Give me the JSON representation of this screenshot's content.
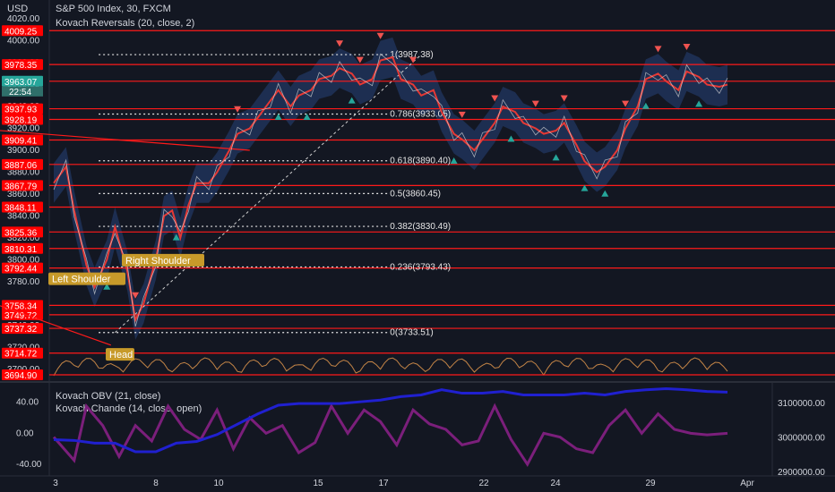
{
  "header": {
    "currency": "USD",
    "symbol_line": "S&P 500 Index, 30, FXCM",
    "indicator_line": "Kovach Reversals (20, close, 2)",
    "sub_line1": "Kovach OBV (21, close)",
    "sub_line2": "Kovach Chande (14, close, open)",
    "price_tag": "3963.07",
    "countdown": "22:54"
  },
  "colors": {
    "background": "#131722",
    "level_line": "#ff1a1a",
    "level_badge": "#ff0000",
    "price_line": "#e53935",
    "band": "#2a4c8c",
    "up_marker": "#26a69a",
    "down_marker": "#ef5350",
    "obv": "#2020d0",
    "chande": "#7b1f7b",
    "pattern_label": "#c79a2a"
  },
  "chart_data": {
    "type": "line",
    "price_axis_ticks": [
      "4020.00",
      "4000.00",
      "3980.00",
      "3960.00",
      "3940.00",
      "3920.00",
      "3900.00",
      "3880.00",
      "3860.00",
      "3840.00",
      "3820.00",
      "3800.00",
      "3780.00",
      "3760.00",
      "3740.00",
      "3720.00",
      "3700.00"
    ],
    "price_ylim": [
      3690,
      4025
    ],
    "horizontal_levels": [
      4009.25,
      3978.35,
      3963.07,
      3937.93,
      3928.19,
      3909.41,
      3887.06,
      3867.79,
      3848.11,
      3825.36,
      3810.31,
      3792.44,
      3758.34,
      3749.72,
      3737.32,
      3714.72,
      3694.9
    ],
    "fib_levels": [
      {
        "label": "1(3987.38)",
        "price": 3987.38
      },
      {
        "label": "0.786(3933.05)",
        "price": 3933.05
      },
      {
        "label": "0.618(3890.40)",
        "price": 3890.4
      },
      {
        "label": "0.5(3860.45)",
        "price": 3860.45
      },
      {
        "label": "0.382(3830.49)",
        "price": 3830.49
      },
      {
        "label": "0.236(3793.43)",
        "price": 3793.43
      },
      {
        "label": "0(3733.51)",
        "price": 3733.51
      }
    ],
    "pattern_labels": [
      "Left Shoulder",
      "Head",
      "Right Shoulder"
    ],
    "x_ticks": [
      "3",
      "8",
      "10",
      "15",
      "17",
      "22",
      "24",
      "29",
      "Apr"
    ],
    "price_series": [
      [
        0,
        3870
      ],
      [
        3,
        3885
      ],
      [
        5,
        3845
      ],
      [
        8,
        3795
      ],
      [
        10,
        3775
      ],
      [
        13,
        3800
      ],
      [
        15,
        3830
      ],
      [
        18,
        3790
      ],
      [
        20,
        3745
      ],
      [
        22,
        3760
      ],
      [
        25,
        3800
      ],
      [
        27,
        3840
      ],
      [
        29,
        3845
      ],
      [
        31,
        3820
      ],
      [
        33,
        3850
      ],
      [
        35,
        3870
      ],
      [
        38,
        3870
      ],
      [
        40,
        3880
      ],
      [
        43,
        3900
      ],
      [
        45,
        3915
      ],
      [
        48,
        3920
      ],
      [
        50,
        3930
      ],
      [
        53,
        3945
      ],
      [
        55,
        3955
      ],
      [
        58,
        3940
      ],
      [
        60,
        3950
      ],
      [
        63,
        3955
      ],
      [
        65,
        3965
      ],
      [
        68,
        3968
      ],
      [
        70,
        3975
      ],
      [
        73,
        3970
      ],
      [
        75,
        3960
      ],
      [
        78,
        3965
      ],
      [
        80,
        3982
      ],
      [
        83,
        3985
      ],
      [
        85,
        3965
      ],
      [
        88,
        3960
      ],
      [
        90,
        3950
      ],
      [
        93,
        3955
      ],
      [
        95,
        3935
      ],
      [
        98,
        3915
      ],
      [
        100,
        3910
      ],
      [
        103,
        3900
      ],
      [
        105,
        3910
      ],
      [
        108,
        3925
      ],
      [
        110,
        3940
      ],
      [
        113,
        3935
      ],
      [
        115,
        3925
      ],
      [
        118,
        3920
      ],
      [
        120,
        3915
      ],
      [
        123,
        3918
      ],
      [
        125,
        3925
      ],
      [
        128,
        3905
      ],
      [
        130,
        3890
      ],
      [
        133,
        3880
      ],
      [
        135,
        3885
      ],
      [
        138,
        3900
      ],
      [
        140,
        3920
      ],
      [
        143,
        3940
      ],
      [
        145,
        3965
      ],
      [
        148,
        3970
      ],
      [
        150,
        3963
      ],
      [
        153,
        3955
      ],
      [
        155,
        3972
      ],
      [
        158,
        3967
      ],
      [
        160,
        3960
      ],
      [
        163,
        3958
      ],
      [
        165,
        3960
      ]
    ],
    "sub_ylim": [
      -55,
      65
    ],
    "sub_ticks": [
      "40.00",
      "0.00",
      "-40.00"
    ],
    "obv_ylim": [
      2890000,
      3160000
    ],
    "obv_ticks": [
      "3100000.00",
      "3000000.00",
      "2900000.00"
    ],
    "chande_series": [
      [
        0,
        -5
      ],
      [
        5,
        -35
      ],
      [
        8,
        35
      ],
      [
        12,
        10
      ],
      [
        16,
        -30
      ],
      [
        20,
        10
      ],
      [
        24,
        -10
      ],
      [
        28,
        35
      ],
      [
        32,
        5
      ],
      [
        36,
        -8
      ],
      [
        40,
        30
      ],
      [
        44,
        -20
      ],
      [
        48,
        20
      ],
      [
        52,
        0
      ],
      [
        56,
        10
      ],
      [
        60,
        -25
      ],
      [
        64,
        -12
      ],
      [
        68,
        35
      ],
      [
        72,
        0
      ],
      [
        76,
        30
      ],
      [
        80,
        15
      ],
      [
        84,
        -15
      ],
      [
        88,
        30
      ],
      [
        92,
        12
      ],
      [
        96,
        5
      ],
      [
        100,
        -15
      ],
      [
        104,
        -10
      ],
      [
        108,
        35
      ],
      [
        112,
        -8
      ],
      [
        116,
        -40
      ],
      [
        120,
        0
      ],
      [
        124,
        -5
      ],
      [
        128,
        -20
      ],
      [
        132,
        -25
      ],
      [
        136,
        10
      ],
      [
        140,
        30
      ],
      [
        144,
        0
      ],
      [
        148,
        25
      ],
      [
        152,
        5
      ],
      [
        156,
        0
      ],
      [
        160,
        -2
      ],
      [
        165,
        0
      ]
    ],
    "obv_series": [
      [
        0,
        2995000
      ],
      [
        5,
        2993000
      ],
      [
        10,
        2985000
      ],
      [
        15,
        2985000
      ],
      [
        20,
        2960000
      ],
      [
        25,
        2960000
      ],
      [
        30,
        2985000
      ],
      [
        35,
        2990000
      ],
      [
        40,
        3010000
      ],
      [
        45,
        3040000
      ],
      [
        50,
        3070000
      ],
      [
        55,
        3095000
      ],
      [
        60,
        3100000
      ],
      [
        65,
        3100000
      ],
      [
        70,
        3100000
      ],
      [
        75,
        3105000
      ],
      [
        80,
        3110000
      ],
      [
        85,
        3120000
      ],
      [
        90,
        3125000
      ],
      [
        95,
        3140000
      ],
      [
        100,
        3130000
      ],
      [
        105,
        3130000
      ],
      [
        110,
        3135000
      ],
      [
        115,
        3125000
      ],
      [
        120,
        3125000
      ],
      [
        125,
        3125000
      ],
      [
        130,
        3130000
      ],
      [
        135,
        3125000
      ],
      [
        140,
        3135000
      ],
      [
        145,
        3140000
      ],
      [
        150,
        3143000
      ],
      [
        155,
        3140000
      ],
      [
        160,
        3135000
      ],
      [
        165,
        3133000
      ]
    ]
  }
}
